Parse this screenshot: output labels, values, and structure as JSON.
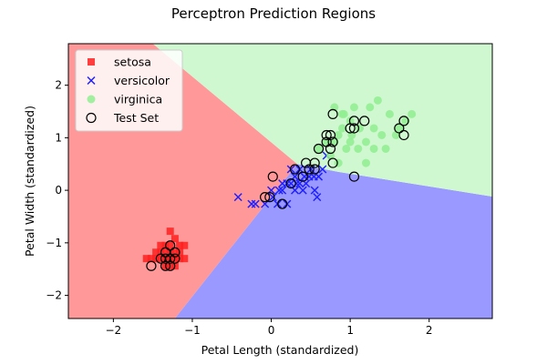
{
  "chart_data": {
    "type": "scatter",
    "title": "Perceptron Prediction Regions",
    "xlabel": "Petal Length (standardized)",
    "ylabel": "Petal Width (standardized)",
    "xlim": [
      -2.57,
      2.8
    ],
    "ylim": [
      -2.44,
      2.79
    ],
    "xticks": [
      -2,
      -1,
      0,
      1,
      2
    ],
    "yticks": [
      -2,
      -1,
      0,
      1,
      2
    ],
    "xtick_labels": [
      "−2",
      "−1",
      "0",
      "1",
      "2"
    ],
    "ytick_labels": [
      "−2",
      "−1",
      "0",
      "1",
      "2"
    ],
    "grid": false,
    "legend_position": "top-left",
    "regions": [
      {
        "class": "setosa",
        "color": "#ff9999",
        "polygon": [
          [
            -2.57,
            2.79
          ],
          [
            -1.5,
            2.79
          ],
          [
            0.33,
            0.5
          ],
          [
            -1.22,
            -2.44
          ],
          [
            -2.57,
            -2.44
          ]
        ]
      },
      {
        "class": "versicolor",
        "color": "#9999ff",
        "polygon": [
          [
            -1.22,
            -2.44
          ],
          [
            0.33,
            0.5
          ],
          [
            0.85,
            0.35
          ],
          [
            2.8,
            -0.12
          ],
          [
            2.8,
            -2.44
          ]
        ]
      },
      {
        "class": "virginica",
        "color": "#d0f8d0",
        "polygon": [
          [
            -1.5,
            2.79
          ],
          [
            2.8,
            2.79
          ],
          [
            2.8,
            -0.12
          ],
          [
            0.85,
            0.35
          ],
          [
            0.33,
            0.5
          ]
        ]
      }
    ],
    "series": [
      {
        "name": "setosa",
        "marker": "square",
        "color": "#ff2020",
        "points": [
          [
            -1.34,
            -1.3
          ],
          [
            -1.28,
            -1.3
          ],
          [
            -1.4,
            -1.18
          ],
          [
            -1.22,
            -1.18
          ],
          [
            -1.34,
            -1.05
          ],
          [
            -1.28,
            -1.05
          ],
          [
            -1.22,
            -0.92
          ],
          [
            -1.28,
            -0.78
          ],
          [
            -1.1,
            -1.05
          ],
          [
            -1.16,
            -1.3
          ],
          [
            -1.4,
            -1.3
          ],
          [
            -1.46,
            -1.3
          ],
          [
            -1.52,
            -1.3
          ],
          [
            -1.58,
            -1.3
          ],
          [
            -1.34,
            -1.44
          ],
          [
            -1.28,
            -1.44
          ],
          [
            -1.22,
            -1.44
          ],
          [
            -1.1,
            -1.3
          ],
          [
            -1.4,
            -1.05
          ],
          [
            -1.16,
            -1.18
          ],
          [
            -1.46,
            -1.18
          ],
          [
            -1.34,
            -1.18
          ],
          [
            -1.28,
            -1.18
          ],
          [
            -1.22,
            -1.3
          ],
          [
            -1.16,
            -1.05
          ]
        ]
      },
      {
        "name": "versicolor",
        "marker": "x",
        "color": "#2020ff",
        "points": [
          [
            -0.42,
            -0.13
          ],
          [
            -0.25,
            -0.26
          ],
          [
            -0.2,
            -0.26
          ],
          [
            -0.08,
            -0.26
          ],
          [
            0.0,
            0.0
          ],
          [
            0.02,
            -0.13
          ],
          [
            0.08,
            -0.26
          ],
          [
            0.1,
            0.0
          ],
          [
            0.14,
            0.13
          ],
          [
            0.2,
            -0.26
          ],
          [
            0.2,
            0.13
          ],
          [
            0.25,
            0.13
          ],
          [
            0.3,
            0.0
          ],
          [
            0.3,
            0.26
          ],
          [
            0.32,
            0.13
          ],
          [
            0.36,
            0.13
          ],
          [
            0.4,
            0.0
          ],
          [
            0.42,
            0.26
          ],
          [
            0.44,
            0.13
          ],
          [
            0.48,
            0.26
          ],
          [
            0.5,
            0.4
          ],
          [
            0.54,
            0.26
          ],
          [
            0.55,
            0.0
          ],
          [
            0.58,
            -0.13
          ],
          [
            0.6,
            0.26
          ],
          [
            0.65,
            0.4
          ],
          [
            0.7,
            0.66
          ],
          [
            0.25,
            0.4
          ],
          [
            0.36,
            0.4
          ],
          [
            0.14,
            0.0
          ]
        ]
      },
      {
        "name": "virginica",
        "marker": "circle",
        "color": "#90ee90",
        "points": [
          [
            0.6,
            0.79
          ],
          [
            0.7,
            0.92
          ],
          [
            0.8,
            0.92
          ],
          [
            0.85,
            1.05
          ],
          [
            0.9,
            1.18
          ],
          [
            0.92,
            1.45
          ],
          [
            0.95,
            0.79
          ],
          [
            1.0,
            1.32
          ],
          [
            1.02,
            1.05
          ],
          [
            1.05,
            1.58
          ],
          [
            1.1,
            0.79
          ],
          [
            1.12,
            1.18
          ],
          [
            1.2,
            0.92
          ],
          [
            1.2,
            0.52
          ],
          [
            1.25,
            1.58
          ],
          [
            1.3,
            0.79
          ],
          [
            1.35,
            1.71
          ],
          [
            1.4,
            1.05
          ],
          [
            1.45,
            0.79
          ],
          [
            1.5,
            1.45
          ],
          [
            1.58,
            1.05
          ],
          [
            1.62,
            1.18
          ],
          [
            1.7,
            1.32
          ],
          [
            1.78,
            1.45
          ],
          [
            0.85,
            0.52
          ],
          [
            0.75,
            0.66
          ],
          [
            1.0,
            0.92
          ],
          [
            0.9,
            1.45
          ],
          [
            1.3,
            1.18
          ],
          [
            0.8,
            1.58
          ]
        ]
      }
    ],
    "test_set": {
      "name": "Test Set",
      "marker": "hollow-circle",
      "points": [
        [
          -1.52,
          -1.44
        ],
        [
          -1.34,
          -1.44
        ],
        [
          -1.28,
          -1.44
        ],
        [
          -1.4,
          -1.3
        ],
        [
          -1.34,
          -1.3
        ],
        [
          -1.28,
          -1.3
        ],
        [
          -1.22,
          -1.3
        ],
        [
          -1.34,
          -1.18
        ],
        [
          -1.22,
          -1.18
        ],
        [
          -1.28,
          -1.05
        ],
        [
          -0.08,
          -0.13
        ],
        [
          0.02,
          0.26
        ],
        [
          -0.02,
          -0.13
        ],
        [
          0.14,
          -0.26
        ],
        [
          0.25,
          0.13
        ],
        [
          0.4,
          0.26
        ],
        [
          0.44,
          0.52
        ],
        [
          0.48,
          0.4
        ],
        [
          0.55,
          0.4
        ],
        [
          0.55,
          0.52
        ],
        [
          0.3,
          0.4
        ],
        [
          0.6,
          0.79
        ],
        [
          0.7,
          1.05
        ],
        [
          0.7,
          0.92
        ],
        [
          0.75,
          1.05
        ],
        [
          0.75,
          0.79
        ],
        [
          0.78,
          0.52
        ],
        [
          0.78,
          1.45
        ],
        [
          0.78,
          0.92
        ],
        [
          1.0,
          1.18
        ],
        [
          1.05,
          1.32
        ],
        [
          1.05,
          1.18
        ],
        [
          1.05,
          0.26
        ],
        [
          1.18,
          1.32
        ],
        [
          1.62,
          1.18
        ],
        [
          1.68,
          1.32
        ],
        [
          1.68,
          1.05
        ]
      ]
    }
  }
}
